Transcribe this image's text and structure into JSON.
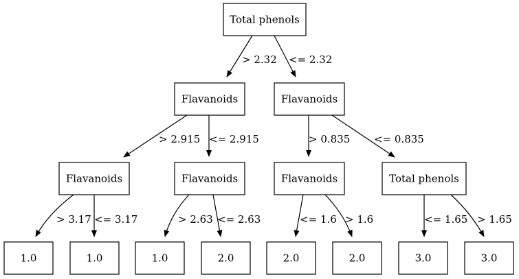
{
  "tree": {
    "nodes": [
      {
        "id": "n0",
        "label": "Total phenols"
      },
      {
        "id": "n1",
        "label": "Flavanoids"
      },
      {
        "id": "n2",
        "label": "Flavanoids"
      },
      {
        "id": "n3",
        "label": "Flavanoids"
      },
      {
        "id": "n4",
        "label": "Flavanoids"
      },
      {
        "id": "n5",
        "label": "Flavanoids"
      },
      {
        "id": "n6",
        "label": "Total phenols"
      },
      {
        "id": "n7",
        "label": "1.0"
      },
      {
        "id": "n8",
        "label": "1.0"
      },
      {
        "id": "n9",
        "label": "1.0"
      },
      {
        "id": "n10",
        "label": "2.0"
      },
      {
        "id": "n11",
        "label": "2.0"
      },
      {
        "id": "n12",
        "label": "2.0"
      },
      {
        "id": "n13",
        "label": "3.0"
      },
      {
        "id": "n14",
        "label": "3.0"
      }
    ],
    "edges": [
      {
        "from": "n0",
        "to": "n1",
        "label": "> 2.32"
      },
      {
        "from": "n0",
        "to": "n2",
        "label": "<= 2.32"
      },
      {
        "from": "n1",
        "to": "n3",
        "label": "> 2.915"
      },
      {
        "from": "n1",
        "to": "n4",
        "label": "<= 2.915"
      },
      {
        "from": "n2",
        "to": "n5",
        "label": "> 0.835"
      },
      {
        "from": "n2",
        "to": "n6",
        "label": "<= 0.835"
      },
      {
        "from": "n3",
        "to": "n7",
        "label": "> 3.17"
      },
      {
        "from": "n3",
        "to": "n8",
        "label": "<= 3.17"
      },
      {
        "from": "n4",
        "to": "n9",
        "label": "> 2.63"
      },
      {
        "from": "n4",
        "to": "n10",
        "label": "<= 2.63"
      },
      {
        "from": "n5",
        "to": "n11",
        "label": "<= 1.6"
      },
      {
        "from": "n5",
        "to": "n12",
        "label": "> 1.6"
      },
      {
        "from": "n6",
        "to": "n13",
        "label": "<= 1.65"
      },
      {
        "from": "n6",
        "to": "n14",
        "label": "> 1.65"
      }
    ]
  }
}
